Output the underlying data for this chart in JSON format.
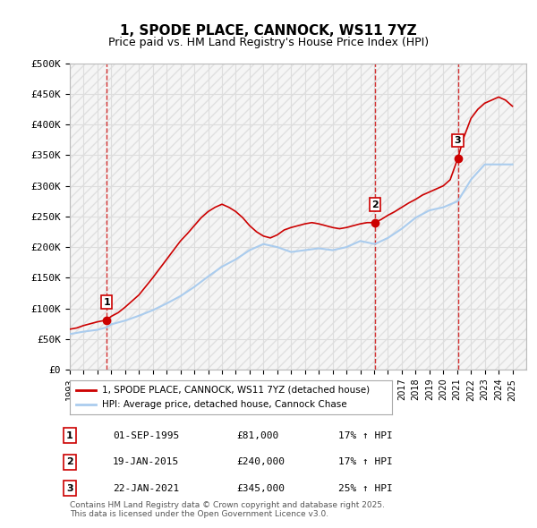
{
  "title": "1, SPODE PLACE, CANNOCK, WS11 7YZ",
  "subtitle": "Price paid vs. HM Land Registry's House Price Index (HPI)",
  "ylabel_ticks": [
    "£0",
    "£50K",
    "£100K",
    "£150K",
    "£200K",
    "£250K",
    "£300K",
    "£350K",
    "£400K",
    "£450K",
    "£500K"
  ],
  "ytick_vals": [
    0,
    50000,
    100000,
    150000,
    200000,
    250000,
    300000,
    350000,
    400000,
    450000,
    500000
  ],
  "ylim": [
    0,
    500000
  ],
  "xlim_start": 1993.0,
  "xlim_end": 2026.0,
  "xtick_years": [
    1993,
    1994,
    1995,
    1996,
    1997,
    1998,
    1999,
    2000,
    2001,
    2002,
    2003,
    2004,
    2005,
    2006,
    2007,
    2008,
    2009,
    2010,
    2011,
    2012,
    2013,
    2014,
    2015,
    2016,
    2017,
    2018,
    2019,
    2020,
    2021,
    2022,
    2023,
    2024,
    2025
  ],
  "sale_color": "#cc0000",
  "hpi_color": "#aaccee",
  "vline_color": "#cc0000",
  "grid_color": "#dddddd",
  "background_color": "#ffffff",
  "plot_bg_color": "#f5f5f5",
  "sales": [
    {
      "year": 1995.67,
      "price": 81000,
      "label": "1"
    },
    {
      "year": 2015.05,
      "price": 240000,
      "label": "2"
    },
    {
      "year": 2021.05,
      "price": 345000,
      "label": "3"
    }
  ],
  "legend_entries": [
    "1, SPODE PLACE, CANNOCK, WS11 7YZ (detached house)",
    "HPI: Average price, detached house, Cannock Chase"
  ],
  "table_rows": [
    {
      "num": "1",
      "date": "01-SEP-1995",
      "price": "£81,000",
      "hpi": "17% ↑ HPI"
    },
    {
      "num": "2",
      "date": "19-JAN-2015",
      "price": "£240,000",
      "hpi": "17% ↑ HPI"
    },
    {
      "num": "3",
      "date": "22-JAN-2021",
      "price": "£345,000",
      "hpi": "25% ↑ HPI"
    }
  ],
  "footer": "Contains HM Land Registry data © Crown copyright and database right 2025.\nThis data is licensed under the Open Government Licence v3.0.",
  "hpi_line": {
    "years": [
      1993,
      1994,
      1995,
      1995.67,
      1996,
      1997,
      1998,
      1999,
      2000,
      2001,
      2002,
      2003,
      2004,
      2005,
      2006,
      2007,
      2008,
      2009,
      2010,
      2011,
      2012,
      2013,
      2014,
      2015.05,
      2016,
      2017,
      2018,
      2019,
      2020,
      2021.05,
      2022,
      2023,
      2024,
      2025
    ],
    "values": [
      58000,
      62000,
      65000,
      69000,
      74000,
      80000,
      88000,
      97000,
      108000,
      120000,
      135000,
      152000,
      168000,
      180000,
      195000,
      205000,
      200000,
      192000,
      195000,
      198000,
      195000,
      200000,
      210000,
      205000,
      215000,
      230000,
      248000,
      260000,
      265000,
      275000,
      310000,
      335000,
      335000,
      335000
    ]
  },
  "price_line": {
    "years": [
      1993,
      1993.5,
      1994,
      1994.5,
      1995,
      1995.67,
      1996,
      1996.5,
      1997,
      1997.5,
      1998,
      1998.5,
      1999,
      1999.5,
      2000,
      2000.5,
      2001,
      2001.5,
      2002,
      2002.5,
      2003,
      2003.5,
      2004,
      2004.5,
      2005,
      2005.5,
      2006,
      2006.5,
      2007,
      2007.5,
      2008,
      2008.5,
      2009,
      2009.5,
      2010,
      2010.5,
      2011,
      2011.5,
      2012,
      2012.5,
      2013,
      2013.5,
      2014,
      2014.5,
      2015.05,
      2015.5,
      2016,
      2016.5,
      2017,
      2017.5,
      2018,
      2018.5,
      2019,
      2019.5,
      2020,
      2020.5,
      2021.05,
      2021.5,
      2022,
      2022.5,
      2023,
      2023.5,
      2024,
      2024.5,
      2025
    ],
    "values": [
      66000,
      68000,
      72000,
      75000,
      78000,
      81000,
      87000,
      93000,
      102000,
      112000,
      122000,
      136000,
      150000,
      165000,
      180000,
      195000,
      210000,
      222000,
      235000,
      248000,
      258000,
      265000,
      270000,
      265000,
      258000,
      248000,
      235000,
      225000,
      218000,
      215000,
      220000,
      228000,
      232000,
      235000,
      238000,
      240000,
      238000,
      235000,
      232000,
      230000,
      232000,
      235000,
      238000,
      240000,
      240000,
      245000,
      252000,
      258000,
      265000,
      272000,
      278000,
      285000,
      290000,
      295000,
      300000,
      310000,
      345000,
      380000,
      410000,
      425000,
      435000,
      440000,
      445000,
      440000,
      430000
    ]
  }
}
